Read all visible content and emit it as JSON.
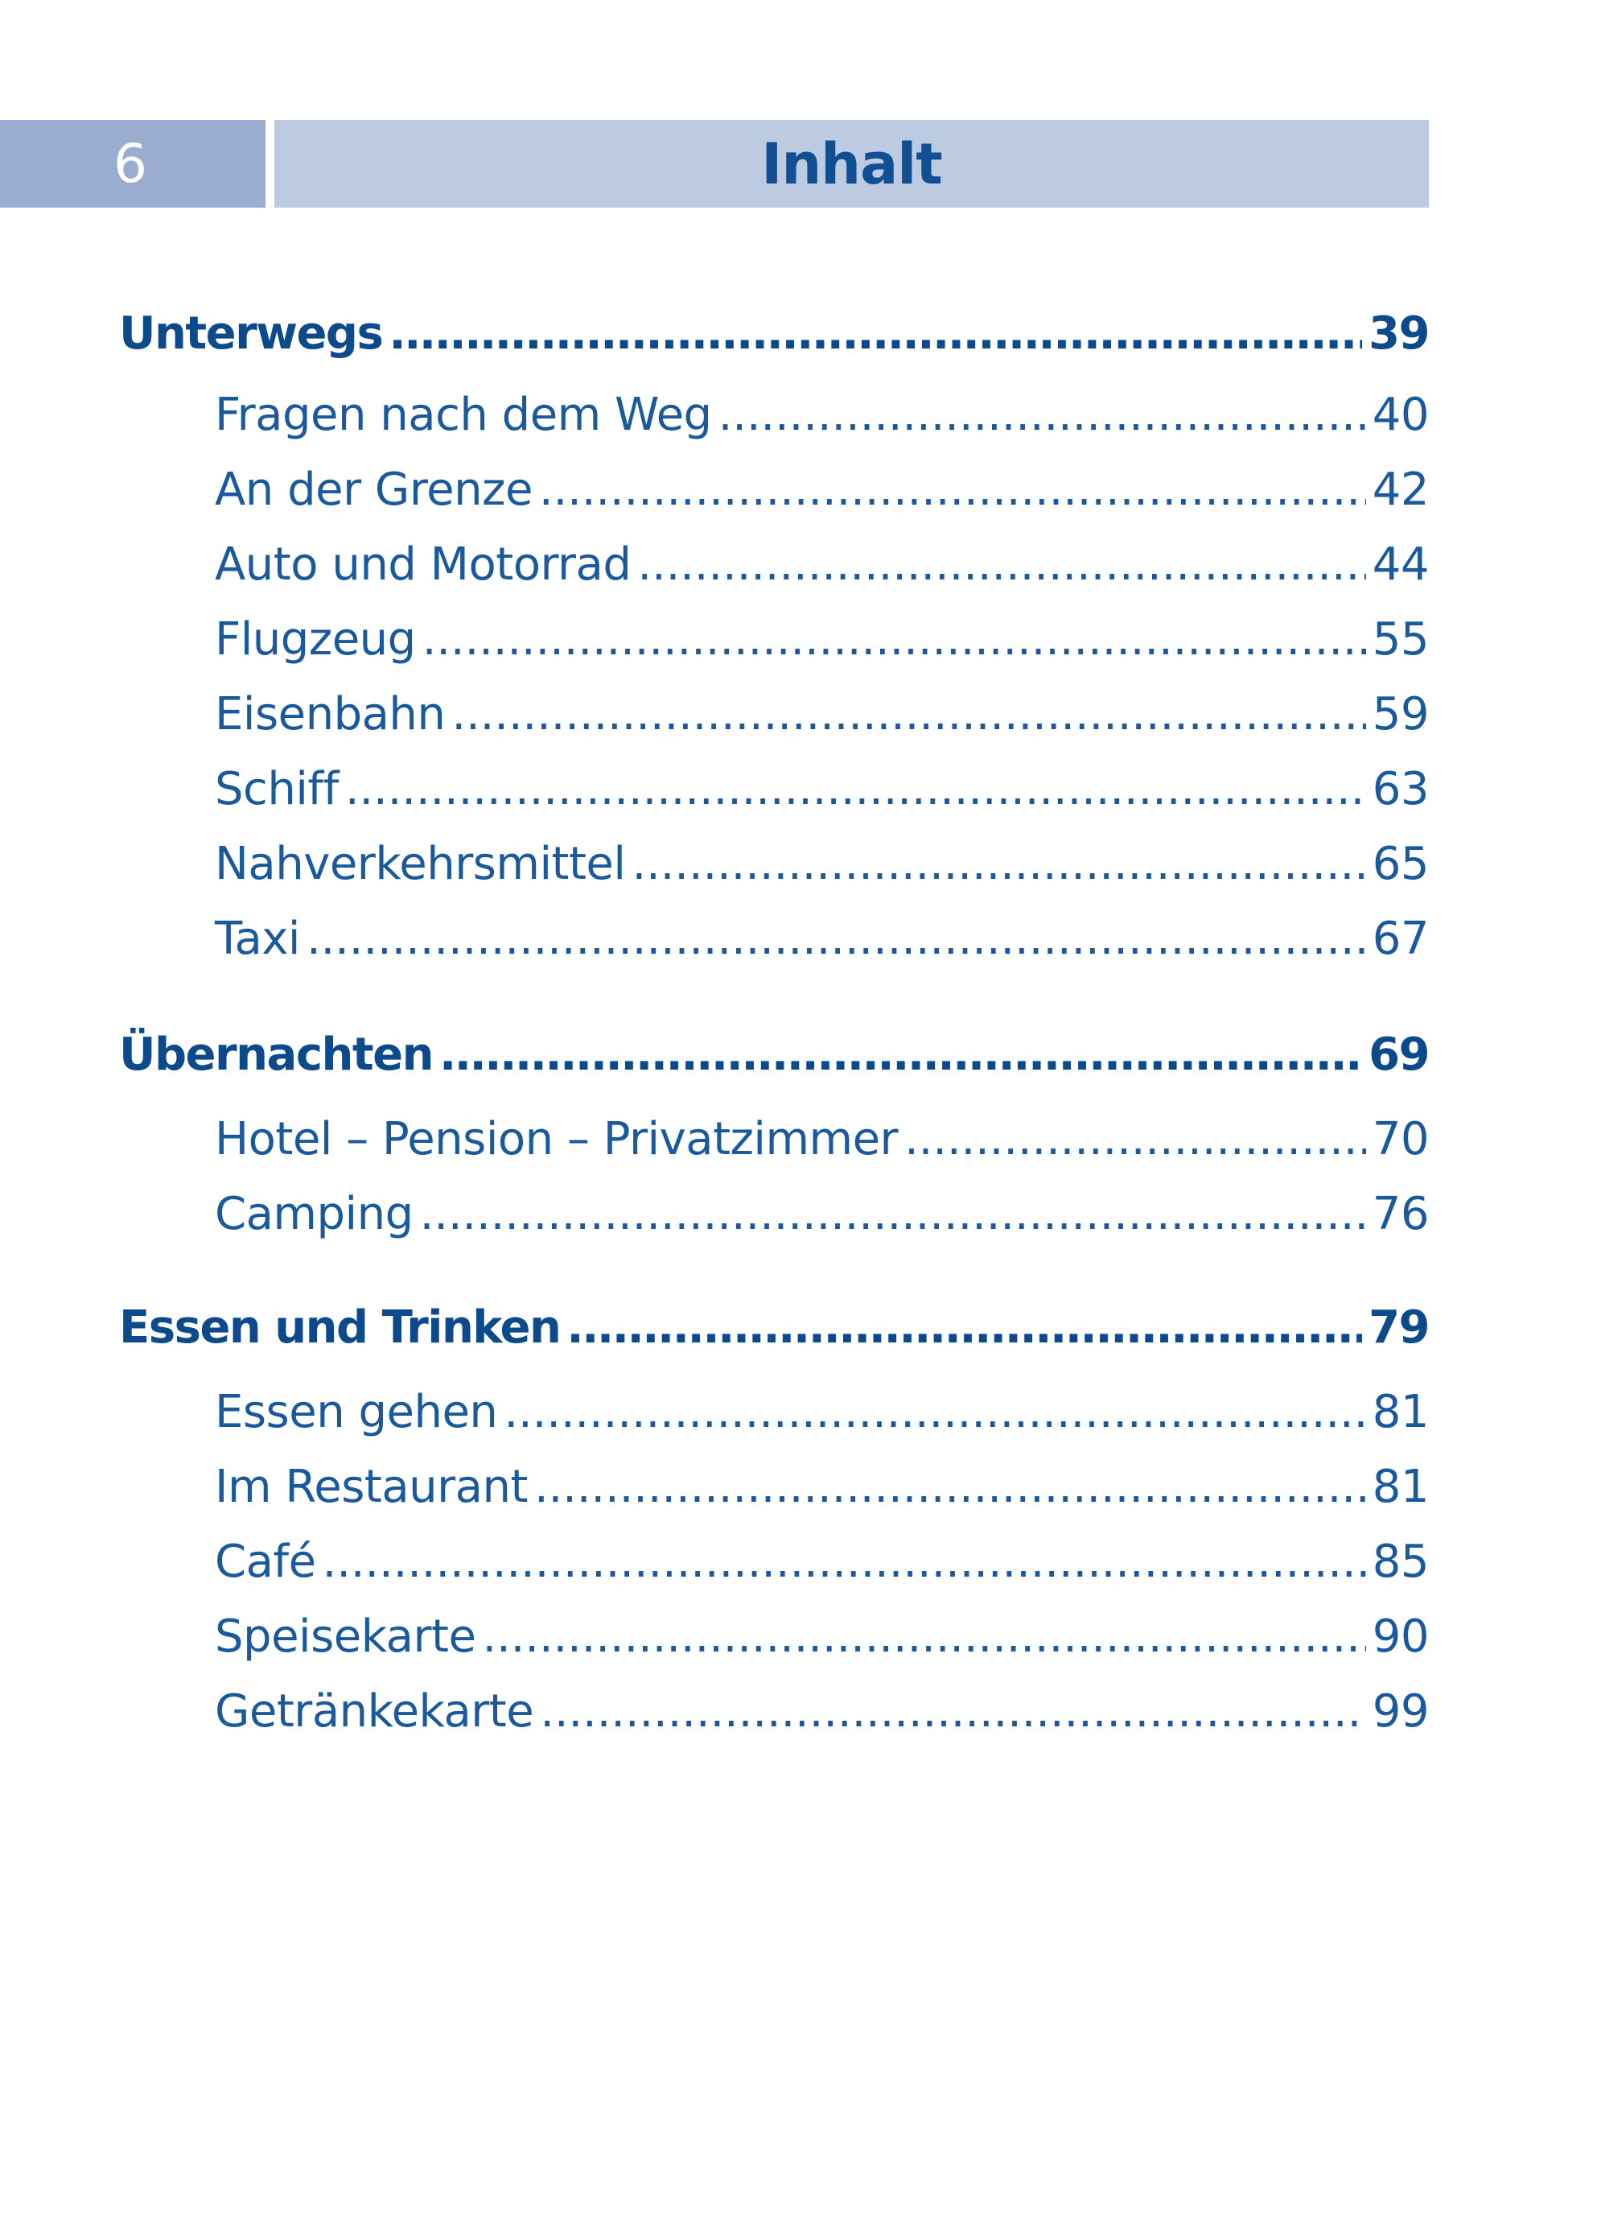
{
  "header": {
    "page_number": "6",
    "title": "Inhalt"
  },
  "colors": {
    "text": "#0f4f92",
    "number_box": "#9aadd0",
    "title_box": "#bccae2"
  },
  "sections": [
    {
      "title": "Unterwegs",
      "page": "39",
      "items": [
        {
          "label": "Fragen nach dem Weg",
          "page": "40"
        },
        {
          "label": "An der Grenze",
          "page": "42"
        },
        {
          "label": "Auto und Motorrad",
          "page": "44"
        },
        {
          "label": "Flugzeug",
          "page": "55"
        },
        {
          "label": "Eisenbahn",
          "page": "59"
        },
        {
          "label": "Schiff",
          "page": "63"
        },
        {
          "label": "Nahverkehrsmittel",
          "page": "65"
        },
        {
          "label": "Taxi",
          "page": "67"
        }
      ]
    },
    {
      "title": "Übernachten",
      "page": "69",
      "items": [
        {
          "label": "Hotel – Pension – Privatzimmer",
          "page": "70"
        },
        {
          "label": "Camping",
          "page": "76"
        }
      ]
    },
    {
      "title": "Essen und Trinken",
      "page": "79",
      "items": [
        {
          "label": "Essen gehen",
          "page": "81"
        },
        {
          "label": "Im Restaurant",
          "page": "81"
        },
        {
          "label": "Café",
          "page": "85"
        },
        {
          "label": "Speisekarte",
          "page": "90"
        },
        {
          "label": "Getränkekarte",
          "page": "99"
        }
      ]
    }
  ]
}
